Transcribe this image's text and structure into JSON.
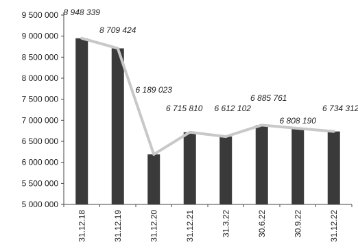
{
  "chart_data": {
    "type": "bar",
    "categories": [
      "31.12.18",
      "31.12.19",
      "31.12.20",
      "31.12.21",
      "31.3.22",
      "30.6.22",
      "30.9.22",
      "31.12.22"
    ],
    "series": [
      {
        "values": [
          8948339,
          8709424,
          6189023,
          6715810,
          6612102,
          6885761,
          6808190,
          6734312
        ]
      }
    ],
    "line_overlay": true,
    "data_labels": [
      "8 948 339",
      "8 709 424",
      "6 189 023",
      "6 715 810",
      "6 612 102",
      "6 885 761",
      "6 808 190",
      "6 734 312"
    ],
    "y_tick_labels": [
      "9 500 000",
      "9 000 000",
      "8 500 000",
      "8 000 000",
      "7 500 000",
      "7 000 000",
      "6 500 000",
      "6 000 000",
      "5 500 000",
      "5 000 000"
    ],
    "y_ticks": [
      9500000,
      9000000,
      8500000,
      8000000,
      7500000,
      7000000,
      6500000,
      6000000,
      5500000,
      5000000
    ],
    "ylim": [
      5000000,
      9500000
    ],
    "title": "",
    "xlabel": "",
    "ylabel": "",
    "grid": false,
    "legend": "none",
    "colors": {
      "bar": "#3a3a3a",
      "line": "#c8c8c8",
      "axis": "#444444",
      "text": "#222222"
    }
  }
}
